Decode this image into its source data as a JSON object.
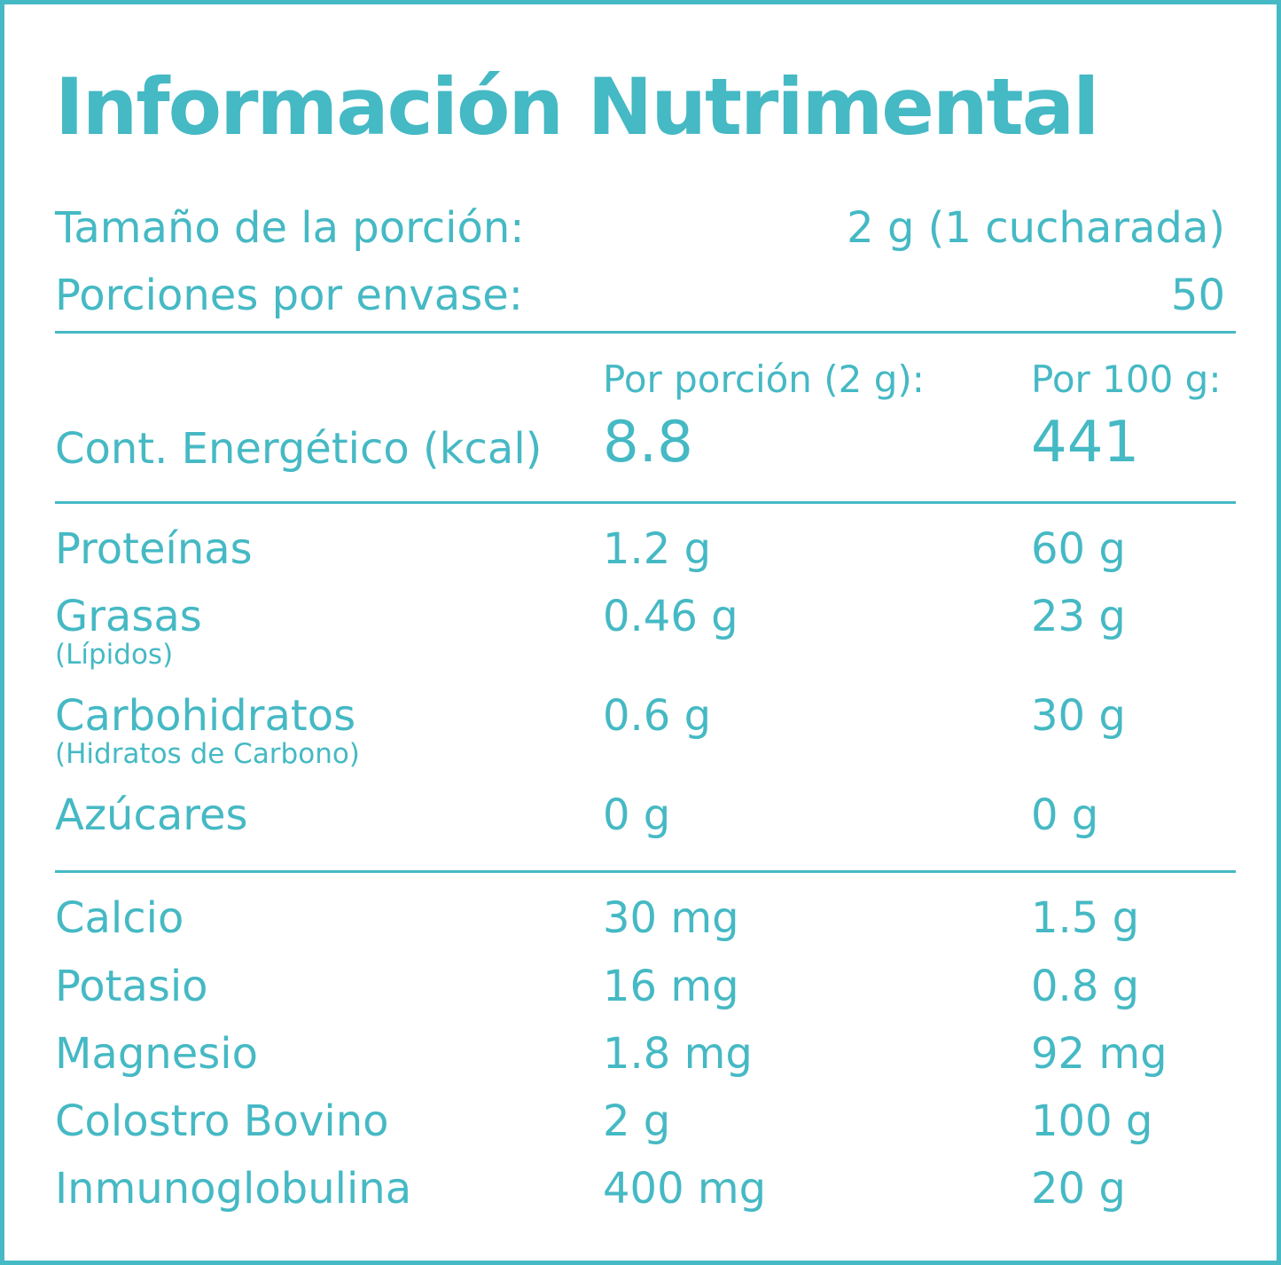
{
  "title": "Información Nutrimental",
  "serving": {
    "size_label": "Tamaño de la porción:",
    "size_value": "2 g (1 cucharada)",
    "per_container_label": "Porciones por envase:",
    "per_container_value": "50"
  },
  "columns": {
    "per_serving": "Por porción (2 g):",
    "per_100g": "Por 100 g:"
  },
  "energy": {
    "label": "Cont. Energético (kcal)",
    "per_serving": "8.8",
    "per_100g": "441"
  },
  "macros": [
    {
      "label": "Proteínas",
      "sub": "",
      "per_serving": "1.2 g",
      "per_100g": "60 g"
    },
    {
      "label": "Grasas",
      "sub": "(Lípidos)",
      "per_serving": "0.46 g",
      "per_100g": "23 g"
    },
    {
      "label": "Carbohidratos",
      "sub": "(Hidratos de Carbono)",
      "per_serving": "0.6 g",
      "per_100g": "30 g"
    },
    {
      "label": "Azúcares",
      "sub": "",
      "per_serving": "0 g",
      "per_100g": "0 g"
    }
  ],
  "minerals": [
    {
      "label": "Calcio",
      "per_serving": "30 mg",
      "per_100g": "1.5 g"
    },
    {
      "label": "Potasio",
      "per_serving": "16 mg",
      "per_100g": "0.8 g"
    },
    {
      "label": "Magnesio",
      "per_serving": "1.8 mg",
      "per_100g": "92 mg"
    },
    {
      "label": "Colostro Bovino",
      "per_serving": "2 g",
      "per_100g": "100 g"
    },
    {
      "label": "Inmunoglobulina",
      "per_serving": "400 mg",
      "per_100g": "20 g"
    }
  ],
  "colors": {
    "accent": "#45b9c4",
    "background": "#ffffff"
  }
}
